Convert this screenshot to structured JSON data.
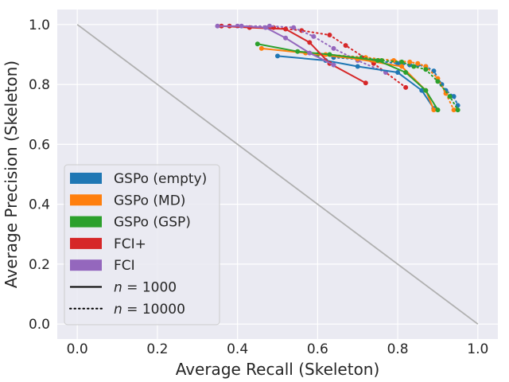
{
  "chart_data": {
    "type": "line",
    "xlabel": "Average Recall (Skeleton)",
    "ylabel": "Average Precision (Skeleton)",
    "xlim": [
      -0.05,
      1.05
    ],
    "ylim": [
      -0.05,
      1.05
    ],
    "xticks": [
      0.0,
      0.2,
      0.4,
      0.6,
      0.8,
      1.0
    ],
    "yticks": [
      0.0,
      0.2,
      0.4,
      0.6,
      0.8,
      1.0
    ],
    "xtick_labels": [
      "0.0",
      "0.2",
      "0.4",
      "0.6",
      "0.8",
      "1.0"
    ],
    "ytick_labels": [
      "0.0",
      "0.2",
      "0.4",
      "0.6",
      "0.8",
      "1.0"
    ],
    "grid": true,
    "legend_position": "lower-left",
    "reference_line": {
      "name": "diagonal",
      "x": [
        0,
        1
      ],
      "y": [
        1,
        0
      ],
      "color": "#b0b0b0"
    },
    "series": [
      {
        "name": "GSPo (empty)",
        "n": "1000",
        "style": "solid",
        "color": "#1f77b4",
        "x": [
          0.5,
          0.62,
          0.7,
          0.8,
          0.86,
          0.89
        ],
        "y": [
          0.895,
          0.88,
          0.86,
          0.84,
          0.78,
          0.72
        ]
      },
      {
        "name": "GSPo (empty)",
        "n": "10000",
        "style": "dotted",
        "color": "#1f77b4",
        "x": [
          0.64,
          0.74,
          0.8,
          0.83,
          0.85,
          0.87,
          0.89,
          0.91,
          0.92,
          0.94,
          0.95
        ],
        "y": [
          0.89,
          0.88,
          0.87,
          0.865,
          0.865,
          0.86,
          0.845,
          0.8,
          0.78,
          0.76,
          0.73
        ]
      },
      {
        "name": "GSPo (MD)",
        "n": "1000",
        "style": "solid",
        "color": "#ff7f0e",
        "x": [
          0.46,
          0.57,
          0.7,
          0.81,
          0.87,
          0.89
        ],
        "y": [
          0.92,
          0.905,
          0.885,
          0.86,
          0.78,
          0.715
        ]
      },
      {
        "name": "GSPo (MD)",
        "n": "10000",
        "style": "dotted",
        "color": "#ff7f0e",
        "x": [
          0.62,
          0.72,
          0.79,
          0.83,
          0.85,
          0.87,
          0.9,
          0.92,
          0.94
        ],
        "y": [
          0.9,
          0.89,
          0.88,
          0.875,
          0.87,
          0.86,
          0.82,
          0.77,
          0.715
        ]
      },
      {
        "name": "GSPo (GSP)",
        "n": "1000",
        "style": "solid",
        "color": "#2ca02c",
        "x": [
          0.45,
          0.55,
          0.63,
          0.75,
          0.82,
          0.87,
          0.9
        ],
        "y": [
          0.935,
          0.91,
          0.9,
          0.88,
          0.84,
          0.78,
          0.715
        ]
      },
      {
        "name": "GSPo (GSP)",
        "n": "10000",
        "style": "dotted",
        "color": "#2ca02c",
        "x": [
          0.6,
          0.71,
          0.76,
          0.81,
          0.84,
          0.87,
          0.9,
          0.93,
          0.95
        ],
        "y": [
          0.9,
          0.89,
          0.88,
          0.875,
          0.86,
          0.85,
          0.81,
          0.76,
          0.715
        ]
      },
      {
        "name": "FCI+",
        "n": "1000",
        "style": "solid",
        "color": "#d62728",
        "x": [
          0.36,
          0.43,
          0.52,
          0.58,
          0.63,
          0.72
        ],
        "y": [
          0.995,
          0.99,
          0.985,
          0.94,
          0.87,
          0.805
        ]
      },
      {
        "name": "FCI+",
        "n": "10000",
        "style": "dotted",
        "color": "#d62728",
        "x": [
          0.38,
          0.49,
          0.56,
          0.63,
          0.67,
          0.74,
          0.82
        ],
        "y": [
          0.995,
          0.99,
          0.98,
          0.965,
          0.93,
          0.87,
          0.79
        ]
      },
      {
        "name": "FCI",
        "n": "1000",
        "style": "solid",
        "color": "#9467bd",
        "x": [
          0.35,
          0.41,
          0.47,
          0.52,
          0.58,
          0.64
        ],
        "y": [
          0.995,
          0.995,
          0.99,
          0.955,
          0.905,
          0.865
        ]
      },
      {
        "name": "FCI",
        "n": "10000",
        "style": "dotted",
        "color": "#9467bd",
        "x": [
          0.4,
          0.48,
          0.54,
          0.59,
          0.64,
          0.7,
          0.77
        ],
        "y": [
          0.995,
          0.995,
          0.99,
          0.96,
          0.92,
          0.88,
          0.84
        ]
      }
    ],
    "legend": [
      {
        "label": "GSPo (empty)",
        "kind": "patch",
        "color": "#1f77b4"
      },
      {
        "label": "GSPo (MD)",
        "kind": "patch",
        "color": "#ff7f0e"
      },
      {
        "label": "GSPo (GSP)",
        "kind": "patch",
        "color": "#2ca02c"
      },
      {
        "label": "FCI+",
        "kind": "patch",
        "color": "#d62728"
      },
      {
        "label": "FCI",
        "kind": "patch",
        "color": "#9467bd"
      },
      {
        "label_prefix": "n",
        "label_value": "1000",
        "kind": "solid-line",
        "color": "#000000"
      },
      {
        "label_prefix": "n",
        "label_value": "10000",
        "kind": "dotted-line",
        "color": "#000000"
      }
    ]
  }
}
